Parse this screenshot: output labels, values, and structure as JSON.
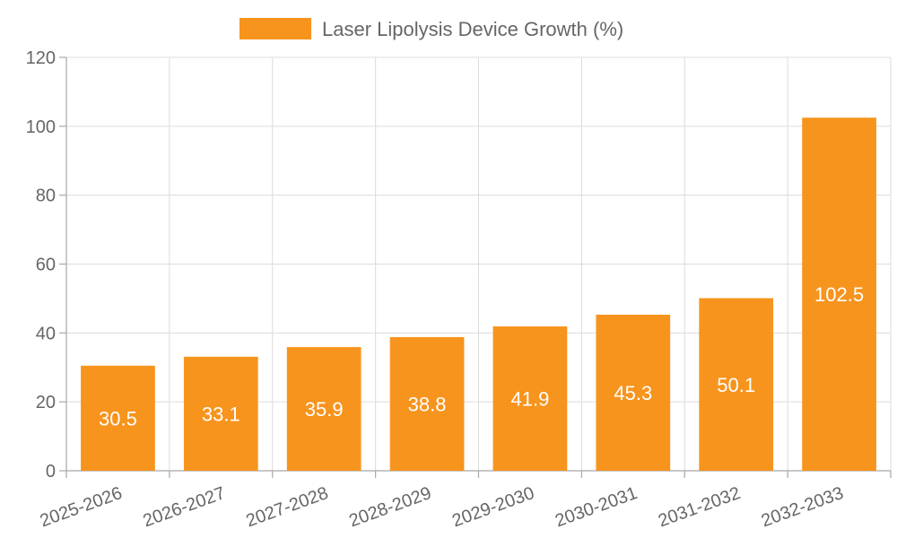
{
  "chart_data": {
    "type": "bar",
    "categories": [
      "2025-2026",
      "2026-2027",
      "2027-2028",
      "2028-2029",
      "2029-2030",
      "2030-2031",
      "2031-2032",
      "2032-2033"
    ],
    "series": [
      {
        "name": "Laser Lipolysis Device Growth (%)",
        "values": [
          30.5,
          33.1,
          35.9,
          38.8,
          41.9,
          45.3,
          50.1,
          102.5
        ],
        "color": "#f7941d"
      }
    ],
    "title": "",
    "xlabel": "",
    "ylabel": "",
    "ylim": [
      0,
      120
    ],
    "yticks": [
      0,
      20,
      40,
      60,
      80,
      100,
      120
    ],
    "grid": true,
    "legend_position": "top-center",
    "data_labels": true
  }
}
